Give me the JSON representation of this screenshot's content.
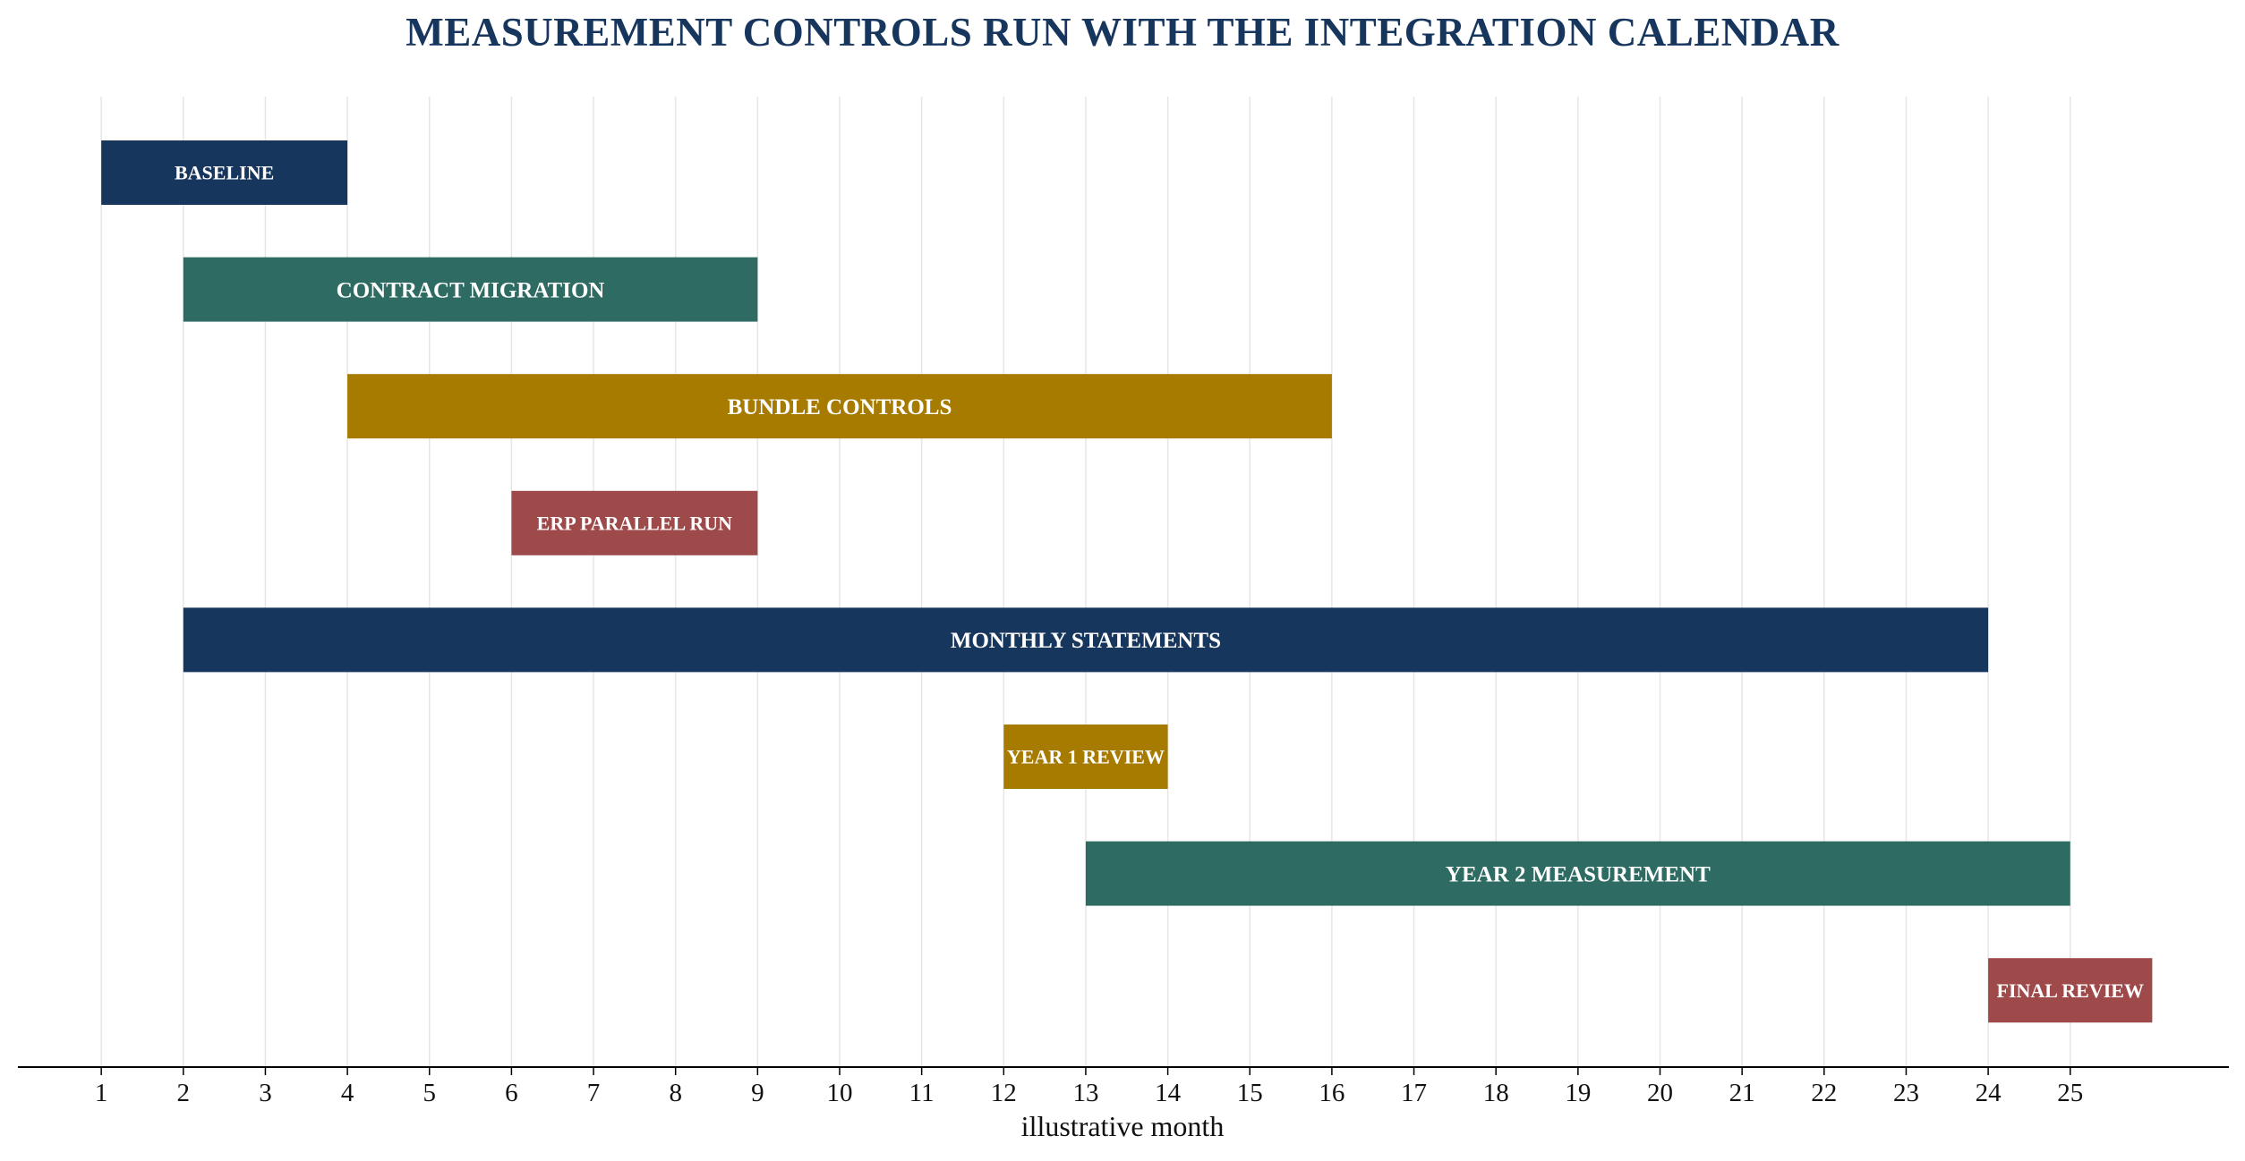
{
  "chart_data": {
    "type": "gantt",
    "title": "MEASUREMENT CONTROLS RUN WITH THE INTEGRATION CALENDAR",
    "xlabel": "illustrative month",
    "ylabel": "",
    "xlim": [
      0,
      27
    ],
    "x_ticks": [
      1,
      2,
      3,
      4,
      5,
      6,
      7,
      8,
      9,
      10,
      11,
      12,
      13,
      14,
      15,
      16,
      17,
      18,
      19,
      20,
      21,
      22,
      23,
      24,
      25
    ],
    "grid": "vertical",
    "tasks": [
      {
        "label": "BASELINE",
        "start": 1,
        "end": 4,
        "color": "#17365d"
      },
      {
        "label": "CONTRACT MIGRATION",
        "start": 2,
        "end": 9,
        "color": "#2e6b62"
      },
      {
        "label": "BUNDLE CONTROLS",
        "start": 4,
        "end": 16,
        "color": "#a77b00"
      },
      {
        "label": "ERP PARALLEL RUN",
        "start": 6,
        "end": 9,
        "color": "#9e4a4a"
      },
      {
        "label": "MONTHLY STATEMENTS",
        "start": 2,
        "end": 24,
        "color": "#17365d"
      },
      {
        "label": "YEAR 1 REVIEW",
        "start": 12,
        "end": 14,
        "color": "#a77b00"
      },
      {
        "label": "YEAR 2 MEASUREMENT",
        "start": 13,
        "end": 25,
        "color": "#2e6b62"
      },
      {
        "label": "FINAL REVIEW",
        "start": 24,
        "end": 26,
        "color": "#9e4a4a"
      }
    ]
  }
}
